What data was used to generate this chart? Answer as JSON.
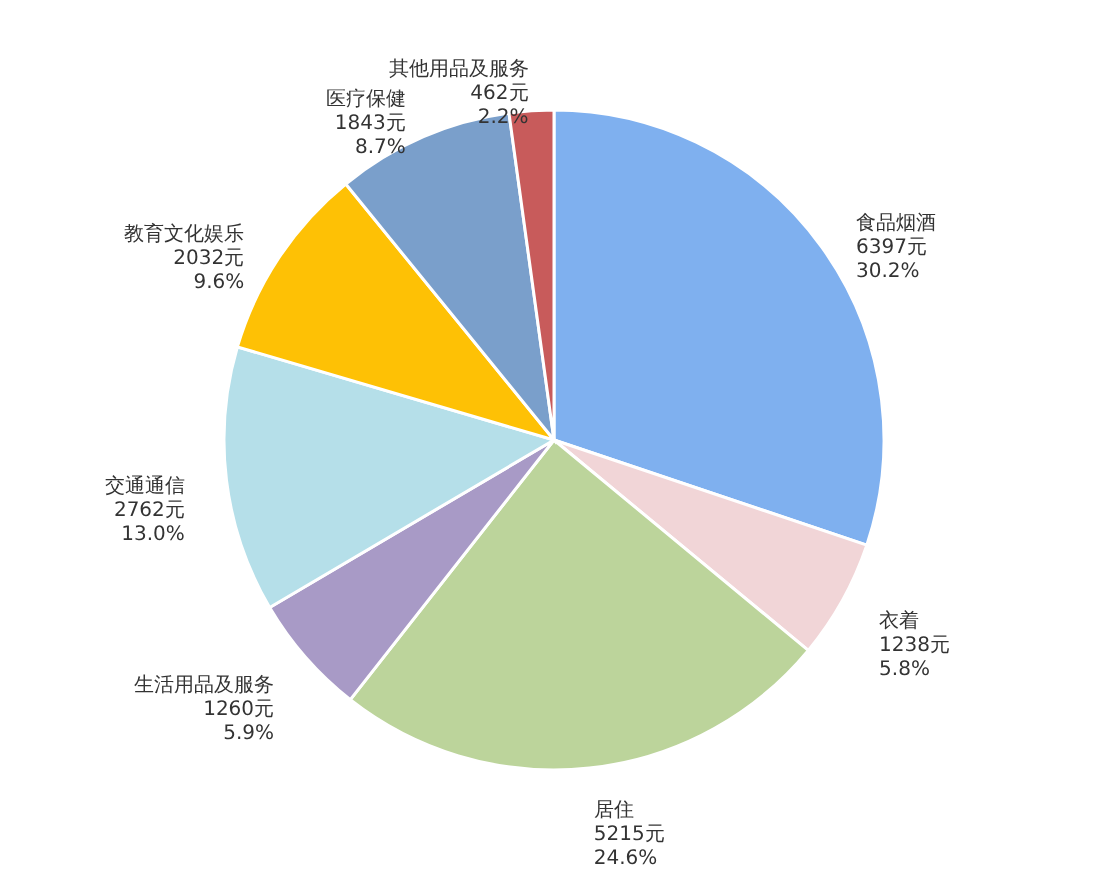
{
  "chart_data": {
    "type": "pie",
    "categories": [
      "食品烟酒",
      "衣着",
      "居住",
      "生活用品及服务",
      "交通通信",
      "教育文化娱乐",
      "医疗保健",
      "其他用品及服务"
    ],
    "values": [
      6397,
      1238,
      5215,
      1260,
      2762,
      2032,
      1843,
      462
    ],
    "value_labels": [
      "6397元\n30.2%",
      "1238元\n5.8%",
      "5215元\n24.6%",
      "1260元\n5.9%",
      "2762元\n13.0%",
      "2032元\n9.6%",
      "1843元\n8.7%",
      "462元\n2.2%"
    ],
    "colors": [
      "#7fb0ef",
      "#f1d5d7",
      "#bcd49b",
      "#a89ac6",
      "#b5dfe9",
      "#fec105",
      "#7a9fcb",
      "#c85b5b"
    ]
  }
}
